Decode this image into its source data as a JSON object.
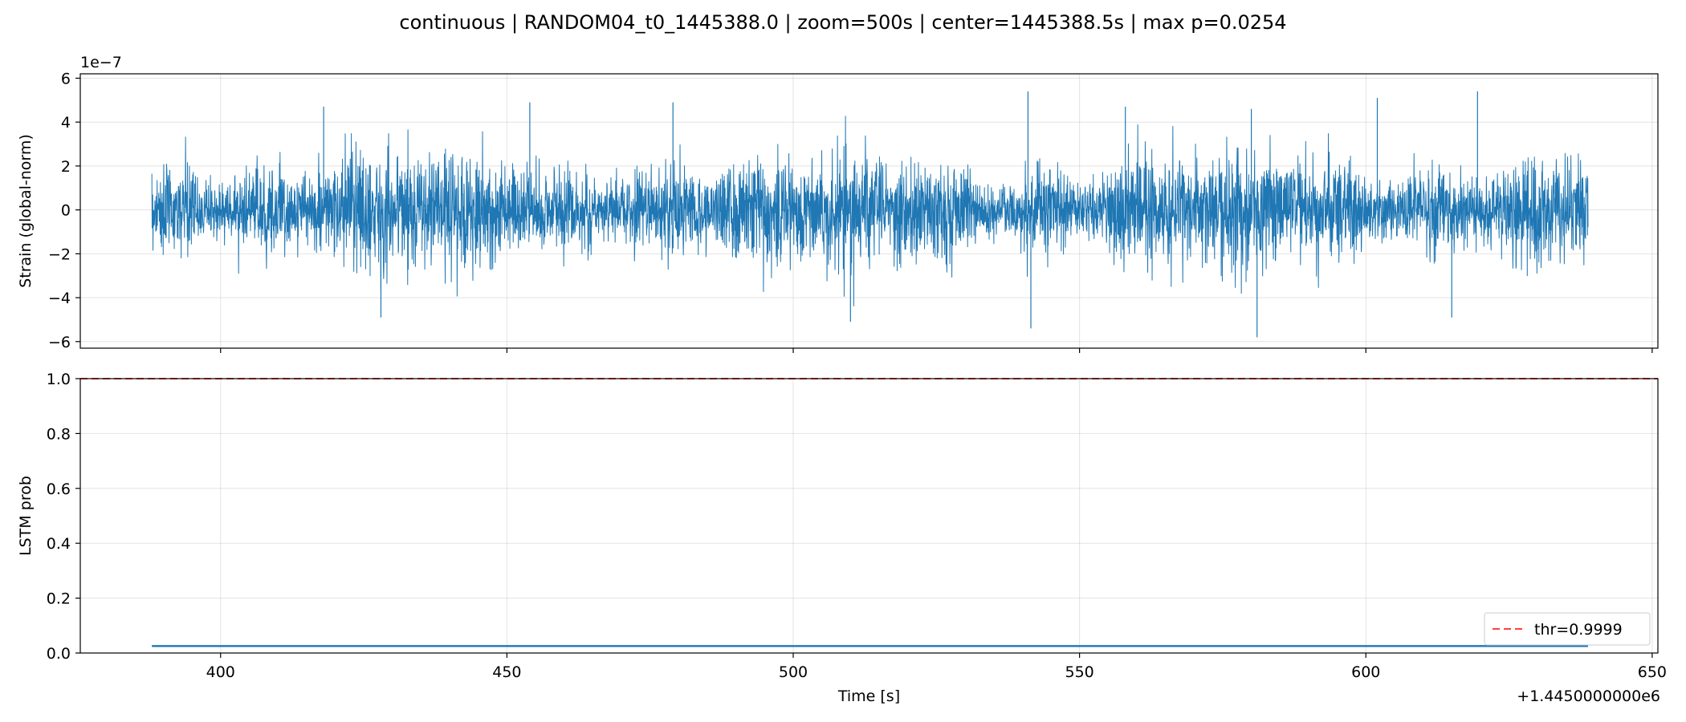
{
  "title": "continuous | RANDOM04_t0_1445388.0 | zoom=500s | center=1445388.5s | max p=0.0254",
  "chart_data": [
    {
      "type": "line",
      "name": "strain-panel",
      "ylabel": "Strain (global-norm)",
      "y_scale_label": "1e−7",
      "y_scale": 1e-07,
      "ylim": [
        -6.3,
        6.2
      ],
      "yticks": [
        -6,
        -4,
        -2,
        0,
        2,
        4,
        6
      ],
      "ytick_labels": [
        "−6",
        "−4",
        "−2",
        "0",
        "2",
        "4",
        "6"
      ],
      "xlim": [
        375.5,
        651.0
      ],
      "xticks": [
        400,
        450,
        500,
        550,
        600,
        650
      ],
      "x_range_data": [
        388.0,
        638.8
      ],
      "grid": true,
      "color": "#1f77b4",
      "noise_description": "dense noise centered on 0, bulk amplitude approx ±3e-7",
      "peaks": [
        {
          "x": 541.0,
          "y": 5.4
        },
        {
          "x": 619.5,
          "y": 5.4
        },
        {
          "x": 602.0,
          "y": 5.1
        },
        {
          "x": 581.0,
          "y": -5.8
        },
        {
          "x": 541.5,
          "y": -5.4
        },
        {
          "x": 428.0,
          "y": -4.9
        },
        {
          "x": 510.0,
          "y": -5.1
        },
        {
          "x": 615.0,
          "y": -4.9
        },
        {
          "x": 479.0,
          "y": 4.9
        },
        {
          "x": 454.0,
          "y": 4.9
        },
        {
          "x": 418.0,
          "y": 4.7
        },
        {
          "x": 558.0,
          "y": 4.7
        },
        {
          "x": 580.0,
          "y": 4.6
        }
      ]
    },
    {
      "type": "line",
      "name": "lstm-panel",
      "ylabel": "LSTM prob",
      "xlabel": "Time [s]",
      "x_offset_label": "+1.4450000000e6",
      "ylim": [
        0.0,
        1.0
      ],
      "yticks": [
        0.0,
        0.2,
        0.4,
        0.6,
        0.8,
        1.0
      ],
      "ytick_labels": [
        "0.0",
        "0.2",
        "0.4",
        "0.6",
        "0.8",
        "1.0"
      ],
      "xlim": [
        375.5,
        651.0
      ],
      "xticks": [
        400,
        450,
        500,
        550,
        600,
        650
      ],
      "xtick_labels": [
        "400",
        "450",
        "500",
        "550",
        "600",
        "650"
      ],
      "grid": true,
      "series": [
        {
          "x": [
            388.0,
            638.8
          ],
          "y": [
            0.0254,
            0.0254
          ],
          "color": "#1f77b4"
        }
      ],
      "threshold": {
        "value": 0.9999,
        "label": "thr=0.9999",
        "color": "#ff0000",
        "style": "dashed"
      },
      "legend_position": "lower-right"
    }
  ]
}
